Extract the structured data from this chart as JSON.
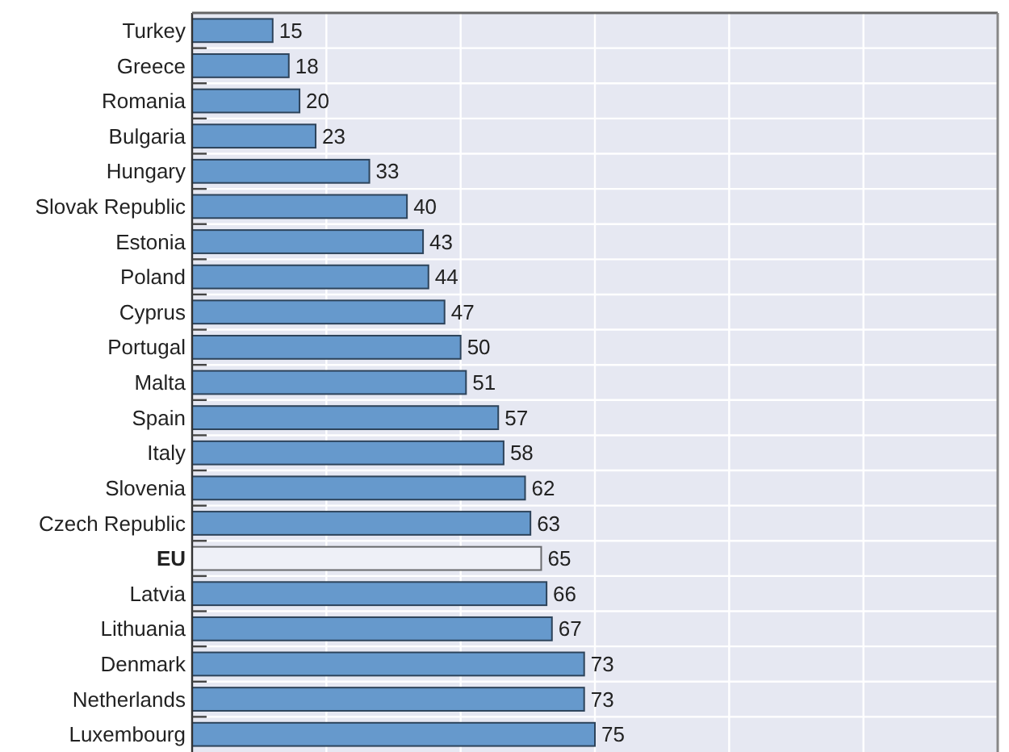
{
  "chart_data": {
    "type": "bar",
    "orientation": "horizontal",
    "categories": [
      "Turkey",
      "Greece",
      "Romania",
      "Bulgaria",
      "Hungary",
      "Slovak Republic",
      "Estonia",
      "Poland",
      "Cyprus",
      "Portugal",
      "Malta",
      "Spain",
      "Italy",
      "Slovenia",
      "Czech Republic",
      "EU",
      "Latvia",
      "Lithuania",
      "Denmark",
      "Netherlands",
      "Luxembourg"
    ],
    "values": [
      15,
      18,
      20,
      23,
      33,
      40,
      43,
      44,
      47,
      50,
      51,
      57,
      58,
      62,
      63,
      65,
      66,
      67,
      73,
      73,
      75
    ],
    "colors": [
      "#6699cc",
      "#6699cc",
      "#6699cc",
      "#6699cc",
      "#6699cc",
      "#6699cc",
      "#6699cc",
      "#6699cc",
      "#6699cc",
      "#6699cc",
      "#6699cc",
      "#6699cc",
      "#6699cc",
      "#6699cc",
      "#6699cc",
      "#eef0f7",
      "#6699cc",
      "#6699cc",
      "#6699cc",
      "#6699cc",
      "#6699cc"
    ],
    "xlim": [
      0,
      150
    ],
    "xticks": [
      {
        "value": 25,
        "label": null
      },
      {
        "value": 50,
        "label": null
      },
      {
        "value": 75,
        "label": null
      },
      {
        "value": 100,
        "label": null
      },
      {
        "value": 125,
        "label": null
      }
    ],
    "grid": true,
    "data_labels": true,
    "tick_labels": "y"
  }
}
